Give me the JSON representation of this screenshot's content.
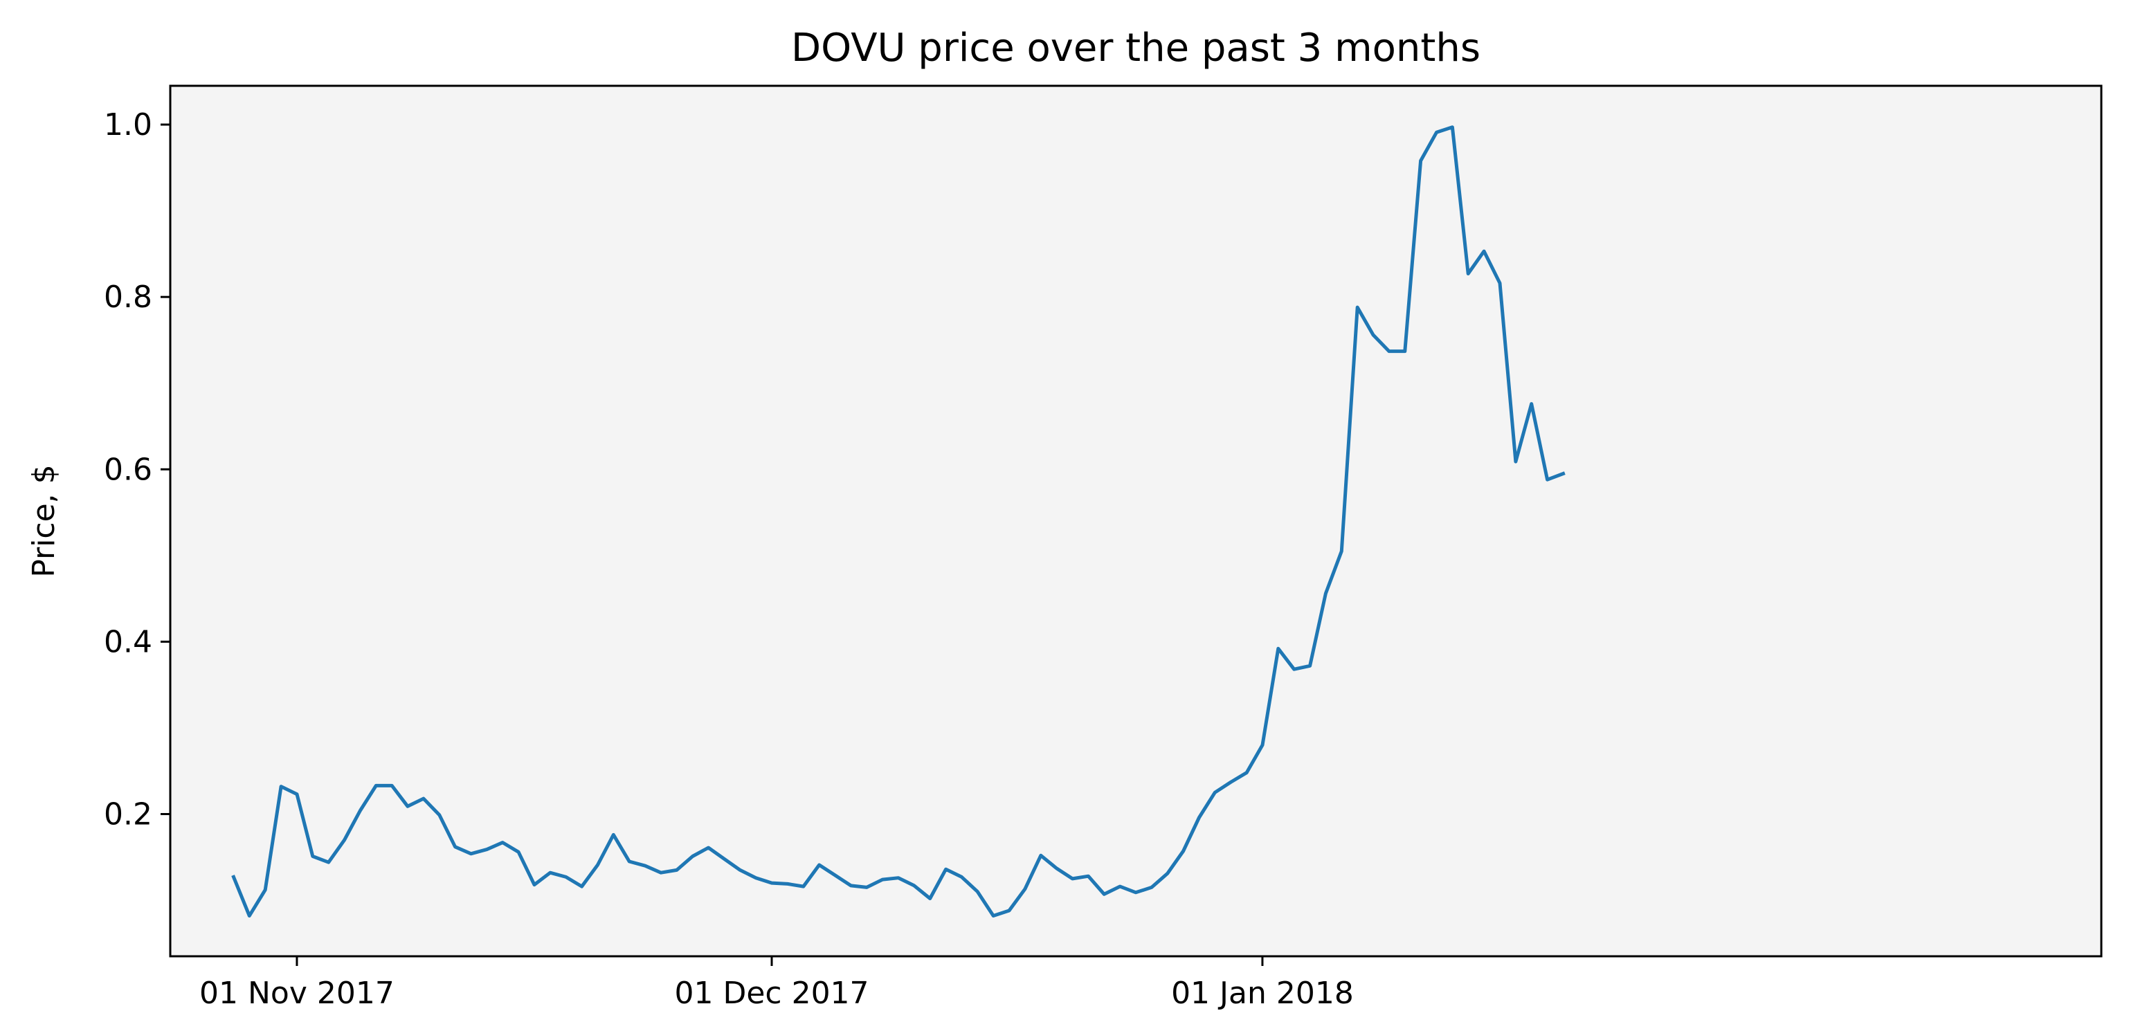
{
  "chart_data": {
    "type": "line",
    "title": "DOVU price over the past 3 months",
    "xlabel": "",
    "ylabel": "Price, $",
    "x_start": "2017-10-28",
    "x_step_days": 1,
    "xlim": [
      "2017-10-24",
      "2018-02-23"
    ],
    "ylim": [
      0.035,
      1.045
    ],
    "xticks": [
      {
        "date": "2017-11-01",
        "label": "01 Nov 2017"
      },
      {
        "date": "2017-12-01",
        "label": "01 Dec 2017"
      },
      {
        "date": "2018-01-01",
        "label": "01 Jan 2018"
      }
    ],
    "yticks": [
      {
        "value": 0.2,
        "label": "0.2"
      },
      {
        "value": 0.4,
        "label": "0.4"
      },
      {
        "value": 0.6,
        "label": "0.6"
      },
      {
        "value": 0.8,
        "label": "0.8"
      },
      {
        "value": 1.0,
        "label": "1.0"
      }
    ],
    "grid": false,
    "background": "#f4f4f4",
    "series": [
      {
        "color": "#1f77b4",
        "values": [
          0.127,
          0.082,
          0.112,
          0.232,
          0.223,
          0.151,
          0.144,
          0.17,
          0.204,
          0.233,
          0.233,
          0.209,
          0.218,
          0.199,
          0.162,
          0.154,
          0.159,
          0.167,
          0.156,
          0.118,
          0.132,
          0.127,
          0.116,
          0.141,
          0.176,
          0.145,
          0.14,
          0.132,
          0.135,
          0.151,
          0.161,
          0.148,
          0.135,
          0.126,
          0.12,
          0.119,
          0.116,
          0.141,
          0.129,
          0.117,
          0.115,
          0.124,
          0.126,
          0.117,
          0.102,
          0.136,
          0.127,
          0.11,
          0.082,
          0.088,
          0.113,
          0.152,
          0.137,
          0.125,
          0.128,
          0.107,
          0.116,
          0.109,
          0.115,
          0.131,
          0.157,
          0.196,
          0.225,
          0.237,
          0.248,
          0.28,
          0.392,
          0.368,
          0.372,
          0.456,
          0.505,
          0.788,
          0.756,
          0.737,
          0.737,
          0.958,
          0.991,
          0.997,
          0.827,
          0.853,
          0.816,
          0.609,
          0.676,
          0.588,
          0.595
        ]
      }
    ]
  }
}
